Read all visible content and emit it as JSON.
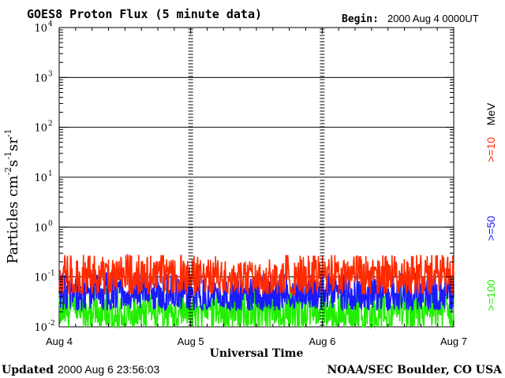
{
  "chart_data": {
    "type": "line",
    "title": "GOES8 Proton Flux (5 minute data)",
    "begin_label": "Begin:",
    "begin_value": "2000 Aug 4 0000UT",
    "xlabel": "Universal Time",
    "ylabel": "Particles cm",
    "ylabel_sup1": "-2",
    "ylabel_mid1": "s",
    "ylabel_sup2": "-1",
    "ylabel_mid2": "sr",
    "ylabel_sup3": "-1",
    "yscale": "log",
    "ylim": [
      0.01,
      10000
    ],
    "y_ticks": [
      {
        "base": "10",
        "exp": "-2",
        "value": 0.01
      },
      {
        "base": "10",
        "exp": "-1",
        "value": 0.1
      },
      {
        "base": "10",
        "exp": "0",
        "value": 1
      },
      {
        "base": "10",
        "exp": "1",
        "value": 10
      },
      {
        "base": "10",
        "exp": "2",
        "value": 100
      },
      {
        "base": "10",
        "exp": "3",
        "value": 1000
      },
      {
        "base": "10",
        "exp": "4",
        "value": 10000
      }
    ],
    "x_ticks": [
      "Aug 4",
      "Aug 5",
      "Aug 6",
      "Aug 7"
    ],
    "xlim_days": [
      0,
      3
    ],
    "grid": true,
    "legend_unit": "MeV",
    "series": [
      {
        "name": ">=10",
        "color": "#ff2a00",
        "typical": 0.1,
        "low": 0.045,
        "high": 0.28
      },
      {
        "name": ">=50",
        "color": "#1a1aff",
        "typical": 0.045,
        "low": 0.022,
        "high": 0.12
      },
      {
        "name": ">=100",
        "color": "#22ee00",
        "typical": 0.02,
        "low": 0.01,
        "high": 0.065
      }
    ]
  },
  "footer": {
    "updated_label": "Updated",
    "updated_value": "2000 Aug  6 23:56:03",
    "source": "NOAA/SEC Boulder, CO USA"
  }
}
